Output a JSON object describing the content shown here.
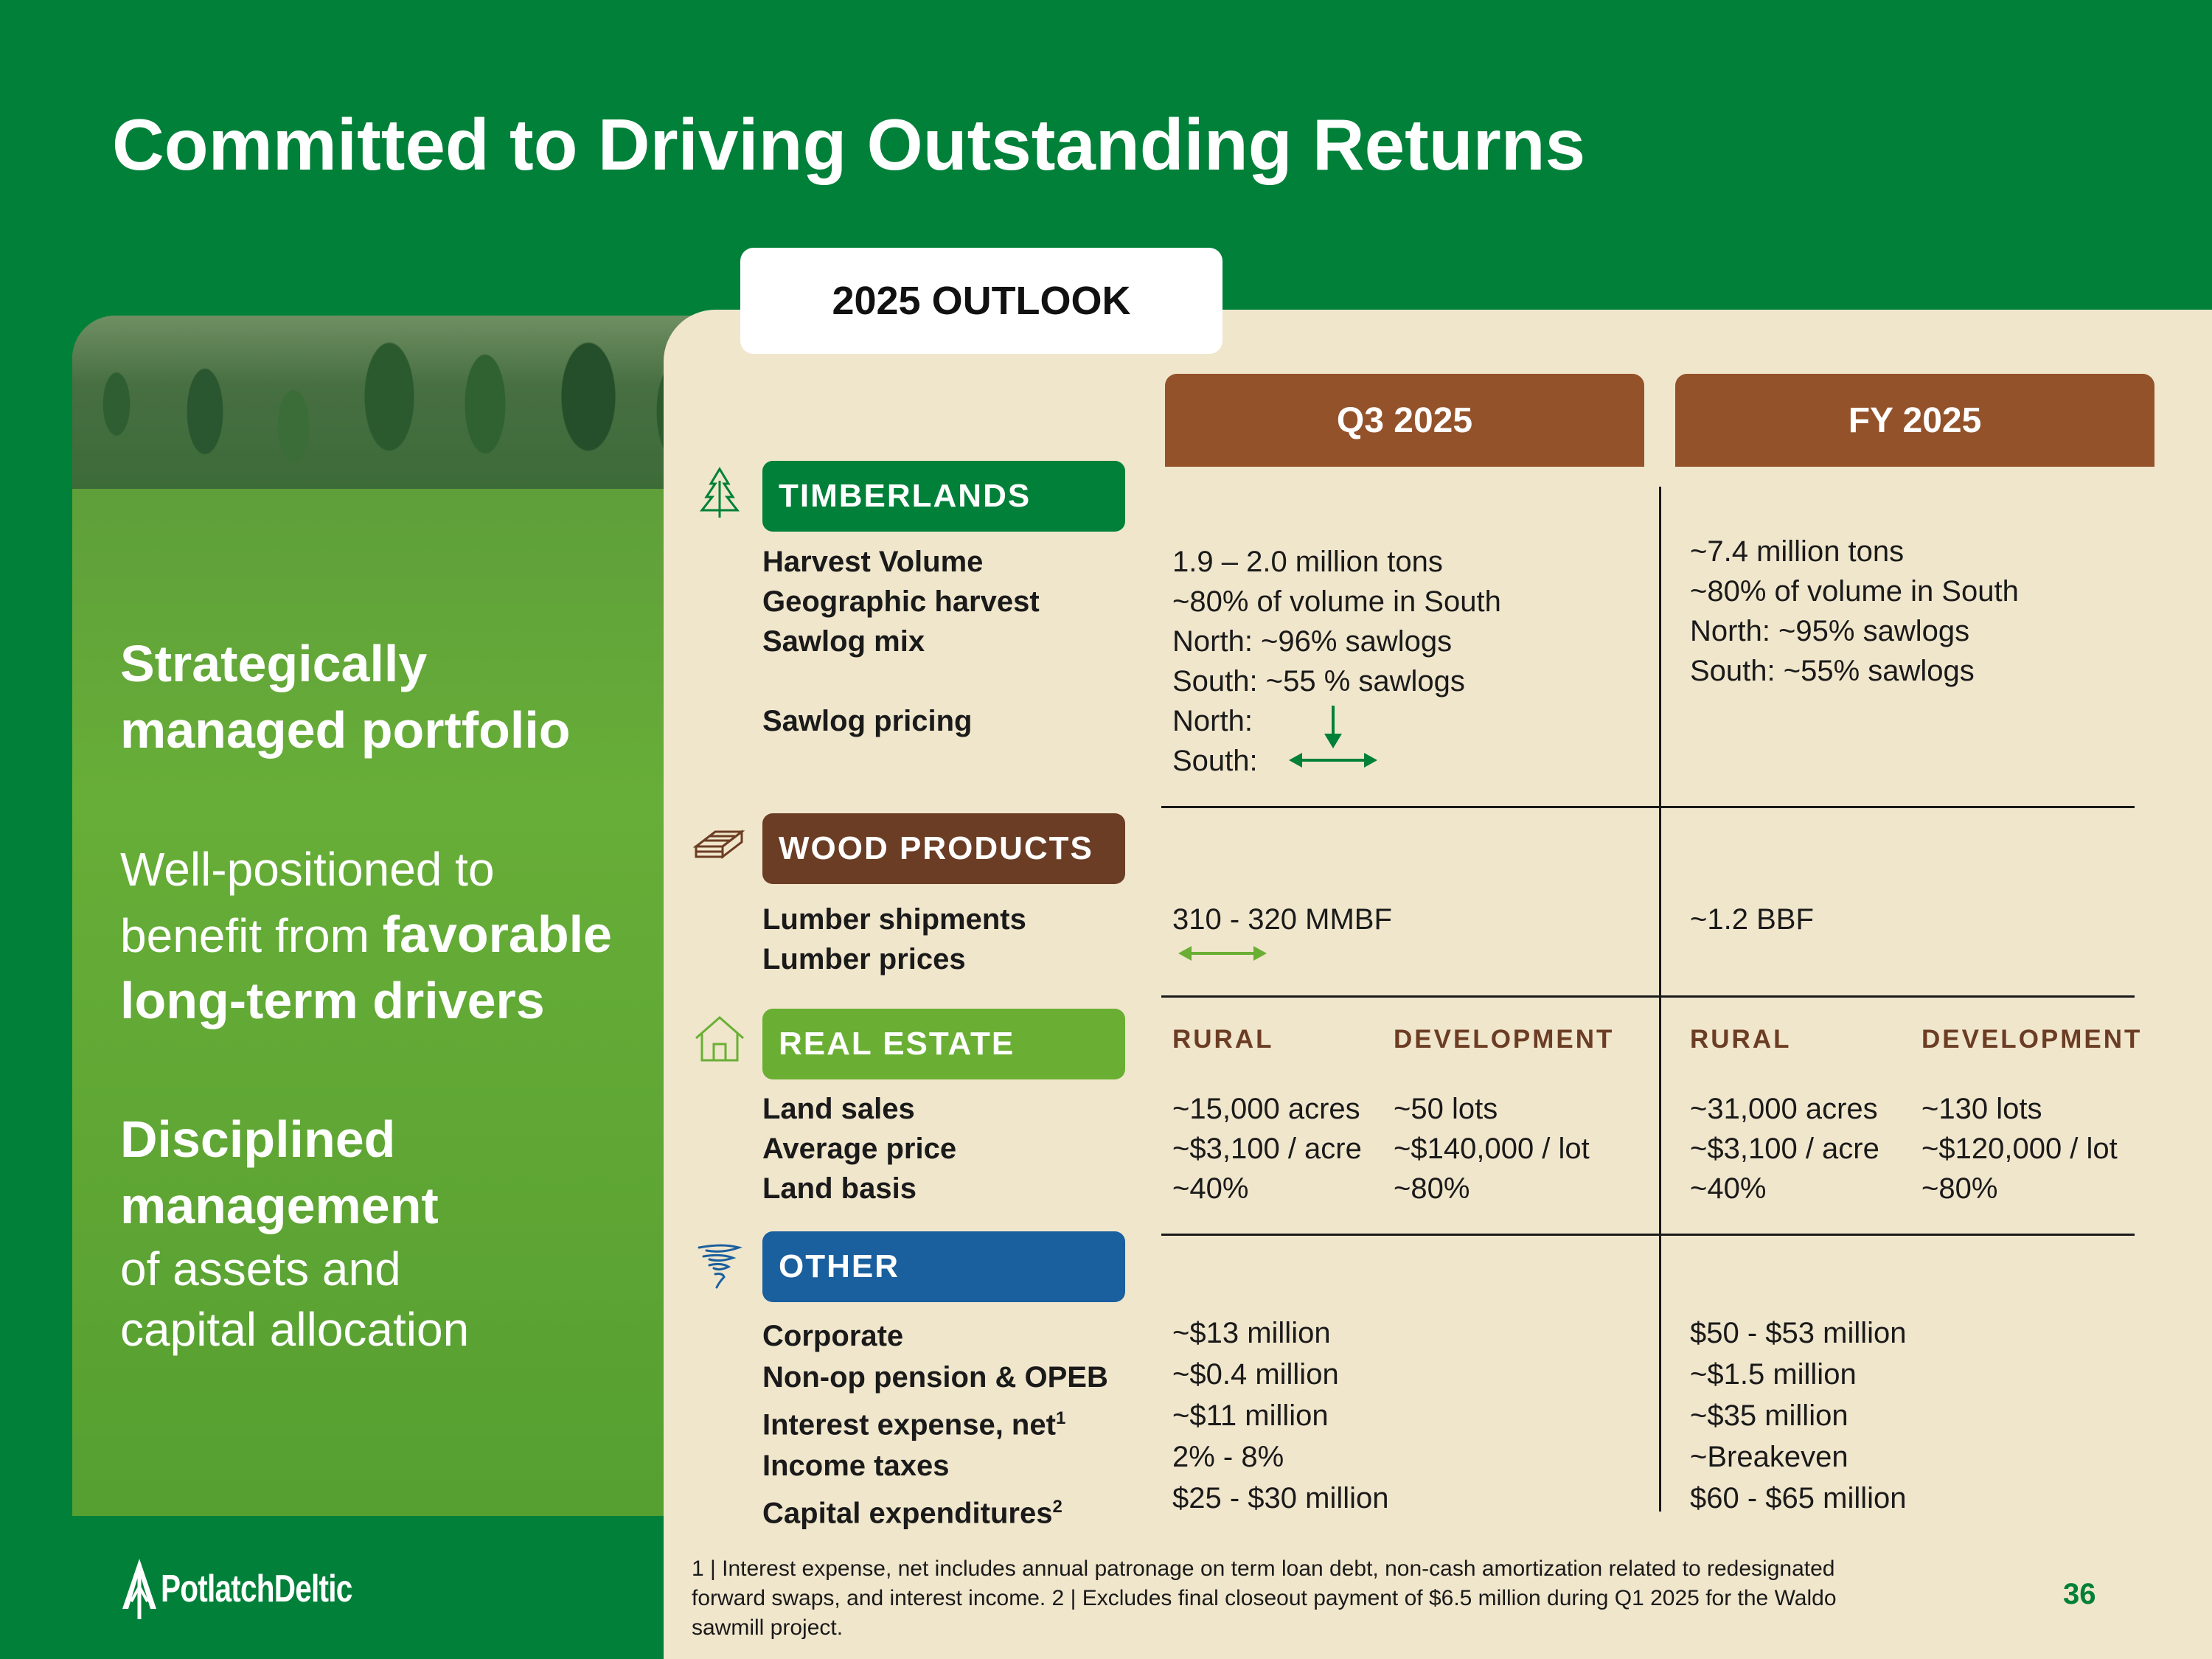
{
  "title": "Committed to Driving Outstanding Returns",
  "left": {
    "block1": [
      "Strategically",
      "managed portfolio"
    ],
    "block2_plain1": "Well-positioned to",
    "block2_plain2": "benefit from ",
    "block2_bold1": "favorable",
    "block2_bold2": "long-term drivers",
    "block3_bold1": "Disciplined",
    "block3_bold2": "management",
    "block3_plain1": "of assets and",
    "block3_plain2": "capital allocation"
  },
  "outlook_tab": "2025 OUTLOOK",
  "columns": {
    "q3": "Q3 2025",
    "fy": "FY 2025"
  },
  "timberlands": {
    "label": "TIMBERLANDS",
    "rows": [
      "Harvest Volume",
      "Geographic harvest",
      "Sawlog mix",
      "Sawlog pricing"
    ],
    "q3": [
      "1.9 – 2.0 million tons",
      "~80% of volume in South",
      "North: ~96% sawlogs",
      "South: ~55 % sawlogs",
      "North:",
      "South:"
    ],
    "fy": [
      "~7.4 million tons",
      "~80% of volume in South",
      "North: ~95% sawlogs",
      "South: ~55% sawlogs"
    ]
  },
  "wood_products": {
    "label": "WOOD PRODUCTS",
    "rows": [
      "Lumber shipments",
      "Lumber prices"
    ],
    "q3": "310 - 320 MMBF",
    "fy": "~1.2 BBF"
  },
  "real_estate": {
    "label": "REAL ESTATE",
    "rows": [
      "Land sales",
      "Average price",
      "Land basis"
    ],
    "sub_rural": "RURAL",
    "sub_dev": "DEVELOPMENT",
    "q3_rural": [
      "~15,000 acres",
      "~$3,100 / acre",
      "~40%"
    ],
    "q3_dev": [
      "~50 lots",
      "~$140,000 / lot",
      "~80%"
    ],
    "fy_rural": [
      "~31,000 acres",
      "~$3,100 / acre",
      "~40%"
    ],
    "fy_dev": [
      "~130 lots",
      "~$120,000 / lot",
      "~80%"
    ]
  },
  "other": {
    "label": "OTHER",
    "rows": [
      "Corporate",
      "Non-op pension & OPEB",
      "Interest expense, net",
      "Income taxes",
      "Capital expenditures"
    ],
    "sup1": "1",
    "sup2": "2",
    "q3": [
      "~$13 million",
      "~$0.4 million",
      "~$11 million",
      "2% - 8%",
      "$25 - $30 million"
    ],
    "fy": [
      "$50 - $53 million",
      "~$1.5 million",
      "~$35 million",
      "~Breakeven",
      "$60 - $65 million"
    ]
  },
  "footnote_lines": [
    "1 | Interest expense, net includes annual patronage on term loan debt, non-cash amortization related to redesignated",
    "forward swaps, and interest income.  2 | Excludes final closeout payment of $6.5 million during Q1 2025 for the Waldo",
    "sawmill project."
  ],
  "page_number": "36",
  "logo_text": "PotlatchDeltic",
  "colors": {
    "brand_green": "#008038",
    "cream": "#f0e6cc",
    "column_header_brown": "#93522a",
    "timberlands": "#008038",
    "wood_products": "#6b3d24",
    "real_estate": "#6aaf34",
    "other": "#1a5f9e",
    "arrow_down": "#008038",
    "arrow_side": "#6aaf34"
  },
  "icons": {
    "timberlands": "tree-icon",
    "wood_products": "lumber-icon",
    "real_estate": "house-icon",
    "other": "tornado-icon",
    "sawlog_north": "arrow-down-icon",
    "sawlog_south": "arrow-left-right-icon",
    "lumber_prices": "arrow-left-right-icon"
  }
}
